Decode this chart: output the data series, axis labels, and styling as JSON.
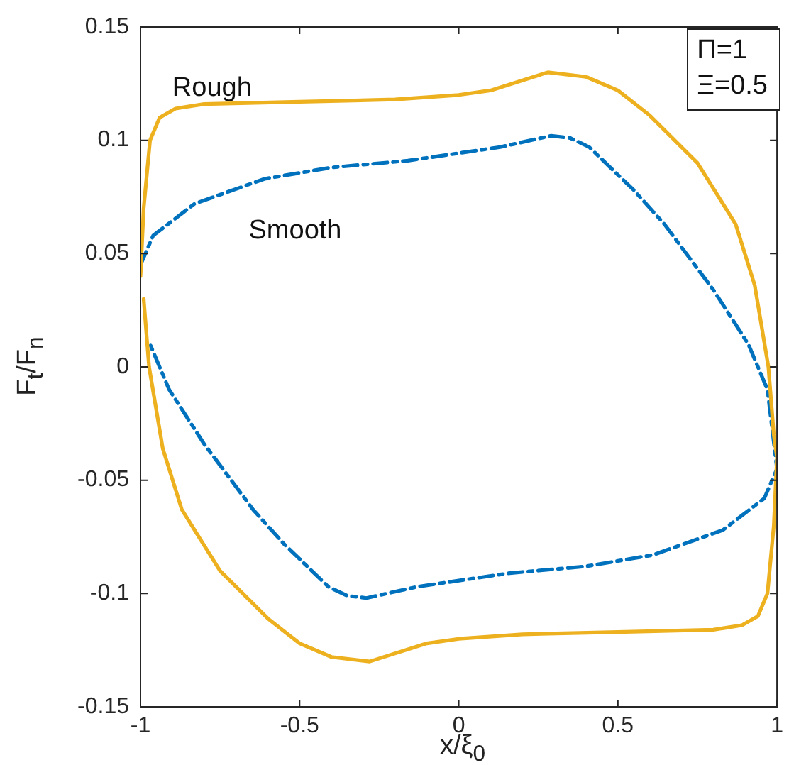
{
  "chart_data": {
    "type": "line",
    "xlabel": "x/ξ$_{0}$",
    "ylabel": "F$_{t}$/F$_{n}$",
    "annotations": [
      "Π=1",
      "Ξ=0.5"
    ],
    "xlim": [
      -1,
      1
    ],
    "xticks": [
      -1,
      -0.5,
      0,
      0.5,
      1
    ],
    "ylim": [
      -0.15,
      0.15
    ],
    "yticks": [
      -0.15,
      -0.1,
      -0.05,
      0,
      0.05,
      0.1,
      0.15
    ],
    "grid": false,
    "legend": false,
    "marker": "none",
    "series": [
      {
        "name": "Rough",
        "color": "#edb120",
        "line_style": "solid",
        "x": [
          -1,
          -0.99,
          -0.97,
          -0.94,
          -0.89,
          -0.8,
          -0.5,
          -0.2,
          0,
          0.1,
          0.28,
          0.4,
          0.5,
          0.6,
          0.75,
          0.87,
          0.93,
          0.973,
          0.99,
          1,
          0.99,
          0.97,
          0.94,
          0.89,
          0.8,
          0.5,
          0.2,
          0,
          -0.1,
          -0.28,
          -0.4,
          -0.5,
          -0.6,
          -0.75,
          -0.87,
          -0.93,
          -0.973,
          -0.99
        ],
        "values": [
          0.04,
          0.07,
          0.1,
          0.11,
          0.114,
          0.116,
          0.117,
          0.118,
          0.12,
          0.122,
          0.13,
          0.128,
          0.122,
          0.111,
          0.09,
          0.063,
          0.036,
          0,
          -0.03,
          -0.04,
          -0.07,
          -0.1,
          -0.11,
          -0.114,
          -0.116,
          -0.117,
          -0.118,
          -0.12,
          -0.122,
          -0.13,
          -0.128,
          -0.122,
          -0.111,
          -0.09,
          -0.063,
          -0.036,
          0,
          0.03
        ]
      },
      {
        "name": "Smooth",
        "color": "#0072bd",
        "line_style": "dashed",
        "x": [
          -1,
          -0.96,
          -0.83,
          -0.61,
          -0.4,
          -0.16,
          0.13,
          0.29,
          0.35,
          0.41,
          0.55,
          0.646,
          0.8,
          0.91,
          0.97,
          1,
          0.96,
          0.83,
          0.61,
          0.4,
          0.16,
          -0.13,
          -0.29,
          -0.35,
          -0.41,
          -0.55,
          -0.646,
          -0.8,
          -0.91,
          -0.97
        ],
        "values": [
          0.045,
          0.058,
          0.072,
          0.083,
          0.088,
          0.091,
          0.097,
          0.102,
          0.101,
          0.097,
          0.078,
          0.063,
          0.034,
          0.01,
          -0.01,
          -0.045,
          -0.058,
          -0.072,
          -0.083,
          -0.088,
          -0.091,
          -0.097,
          -0.102,
          -0.101,
          -0.097,
          -0.078,
          -0.063,
          -0.034,
          -0.01,
          0.01
        ]
      }
    ]
  }
}
